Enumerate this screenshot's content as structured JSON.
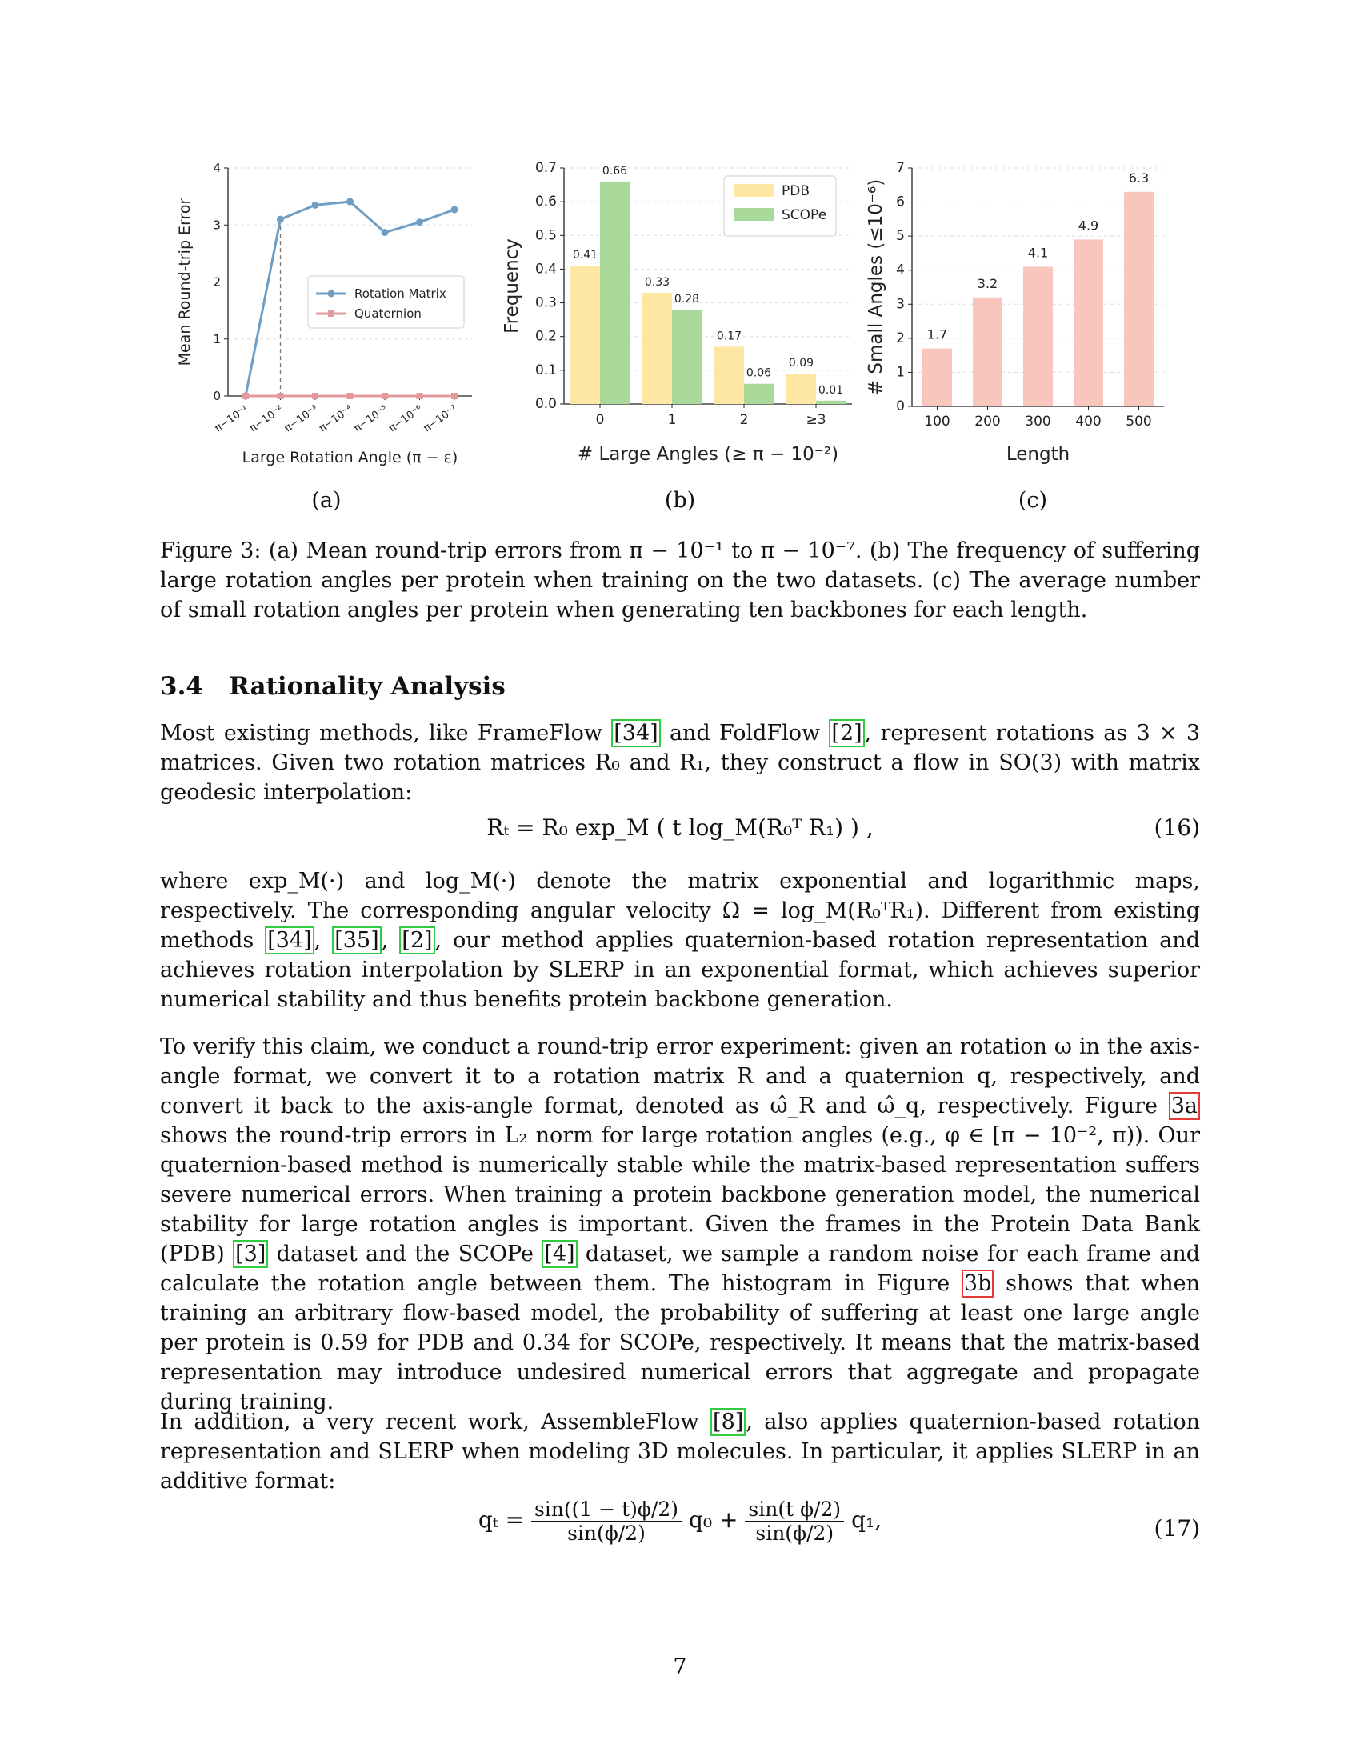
{
  "chart_data": [
    {
      "type": "line",
      "x": [
        "π−10⁻¹",
        "π−10⁻²",
        "π−10⁻³",
        "π−10⁻⁴",
        "π−10⁻⁵",
        "π−10⁻⁶",
        "π−10⁻⁷"
      ],
      "series": [
        {
          "name": "Rotation Matrix",
          "values": [
            0.0,
            3.1,
            3.35,
            3.41,
            2.87,
            3.05,
            3.27
          ],
          "color": "#6e9ec4"
        },
        {
          "name": "Quaternion",
          "values": [
            0,
            0,
            0,
            0,
            0,
            0,
            0
          ],
          "color": "#e39a9a"
        }
      ],
      "xlabel": "Large Rotation Angle (π − ε)",
      "ylabel": "Mean Round-trip Error",
      "ylim": [
        0,
        4
      ],
      "yticks": [
        "0",
        "1",
        "2",
        "3",
        "4"
      ],
      "legend": "center-right",
      "grid": true
    },
    {
      "type": "bar",
      "categories": [
        "0",
        "1",
        "2",
        "≥3"
      ],
      "series": [
        {
          "name": "PDB",
          "values": [
            0.41,
            0.33,
            0.17,
            0.09
          ],
          "color": "#fde7a3"
        },
        {
          "name": "SCOPe",
          "values": [
            0.66,
            0.28,
            0.06,
            0.01
          ],
          "color": "#a8d99a"
        }
      ],
      "value_labels": [
        [
          "0.41",
          "0.33",
          "0.17",
          "0.09"
        ],
        [
          "0.66",
          "0.28",
          "0.06",
          "0.01"
        ]
      ],
      "xlabel": "# Large Angles (≥ π − 10⁻²)",
      "ylabel": "Frequency",
      "ylim": [
        0,
        0.7
      ],
      "yticks": [
        "0.0",
        "0.1",
        "0.2",
        "0.3",
        "0.4",
        "0.5",
        "0.6",
        "0.7"
      ],
      "legend": "top-right",
      "grid": true
    },
    {
      "type": "bar",
      "categories": [
        "100",
        "200",
        "300",
        "400",
        "500"
      ],
      "values": [
        1.7,
        3.2,
        4.1,
        4.9,
        6.3
      ],
      "value_labels": [
        "1.7",
        "3.2",
        "4.1",
        "4.9",
        "6.3"
      ],
      "color": "#f9c6bd",
      "xlabel": "Length",
      "ylabel": "# Small Angles (≤10⁻⁶)",
      "ylim": [
        0,
        7
      ],
      "yticks": [
        "0",
        "1",
        "2",
        "3",
        "4",
        "5",
        "6",
        "7"
      ],
      "grid": true
    }
  ],
  "subfigure_labels": [
    "(a)",
    "(b)",
    "(c)"
  ],
  "caption": "Figure 3: (a) Mean round-trip errors from π − 10⁻¹ to π − 10⁻⁷. (b) The frequency of suffering large rotation angles per protein when training on the two datasets. (c) The average number of small rotation angles per protein when generating ten backbones for each length.",
  "section": {
    "number": "3.4",
    "title": "Rationality Analysis"
  },
  "paragraph_1": {
    "text_a": "Most existing methods, like FrameFlow ",
    "cite_a": "[34]",
    "text_b": " and FoldFlow ",
    "cite_b": "[2]",
    "text_c": ", represent rotations as 3 × 3 matrices. Given two rotation matrices R₀ and R₁, they construct a flow in SO(3) with matrix geodesic interpolation:"
  },
  "equation_16": {
    "body": "Rₜ = R₀ exp_M ( t log_M(R₀ᵀ R₁) ) ,",
    "number": "(16)"
  },
  "paragraph_2": {
    "text_a": "where exp_M(·) and log_M(·) denote the matrix exponential and logarithmic maps, respectively. The corresponding angular velocity Ω = log_M(R₀ᵀR₁). Different from existing methods ",
    "cite_a": "[34]",
    "sep_1": ", ",
    "cite_b": "[35]",
    "sep_2": ", ",
    "cite_c": "[2]",
    "text_b": ", our method applies quaternion-based rotation representation and achieves rotation interpolation by SLERP in an exponential format, which achieves superior numerical stability and thus benefits protein backbone generation."
  },
  "paragraph_3": {
    "text_a": "To verify this claim, we conduct a round-trip error experiment: given an rotation ω in the axis-angle format, we convert it to a rotation matrix R and a quaternion q, respectively, and convert it back to the axis-angle format, denoted as ω̂_R and ω̂_q, respectively. Figure ",
    "ref_a": "3a",
    "text_b": " shows the round-trip errors in L₂ norm for large rotation angles (e.g., φ ∈ [π − 10⁻², π)). Our quaternion-based method is numerically stable while the matrix-based representation suffers severe numerical errors. When training a protein backbone generation model, the numerical stability for large rotation angles is important. Given the frames in the Protein Data Bank (PDB) ",
    "cite_a": "[3]",
    "text_c": " dataset and the SCOPe ",
    "cite_b": "[4]",
    "text_d": " dataset, we sample a random noise for each frame and calculate the rotation angle between them. The histogram in Figure ",
    "ref_b": "3b",
    "text_e": " shows that when training an arbitrary flow-based model, the probability of suffering at least one large angle per protein is 0.59 for PDB and 0.34 for SCOPe, respectively. It means that the matrix-based representation may introduce undesired numerical errors that aggregate and propagate during training."
  },
  "paragraph_4": {
    "text_a": "In addition, a very recent work, AssembleFlow ",
    "cite_a": "[8]",
    "text_b": ", also applies quaternion-based rotation representation and SLERP when modeling 3D molecules. In particular, it applies SLERP in an additive format:"
  },
  "equation_17": {
    "lhs": "qₜ =",
    "num_1": "sin((1 − t)ϕ/2)",
    "den_1": "sin(ϕ/2)",
    "mid": "q₀ +",
    "num_2": "sin(t ϕ/2)",
    "den_2": "sin(ϕ/2)",
    "rhs": "q₁,",
    "number": "(17)"
  },
  "page_number": "7"
}
